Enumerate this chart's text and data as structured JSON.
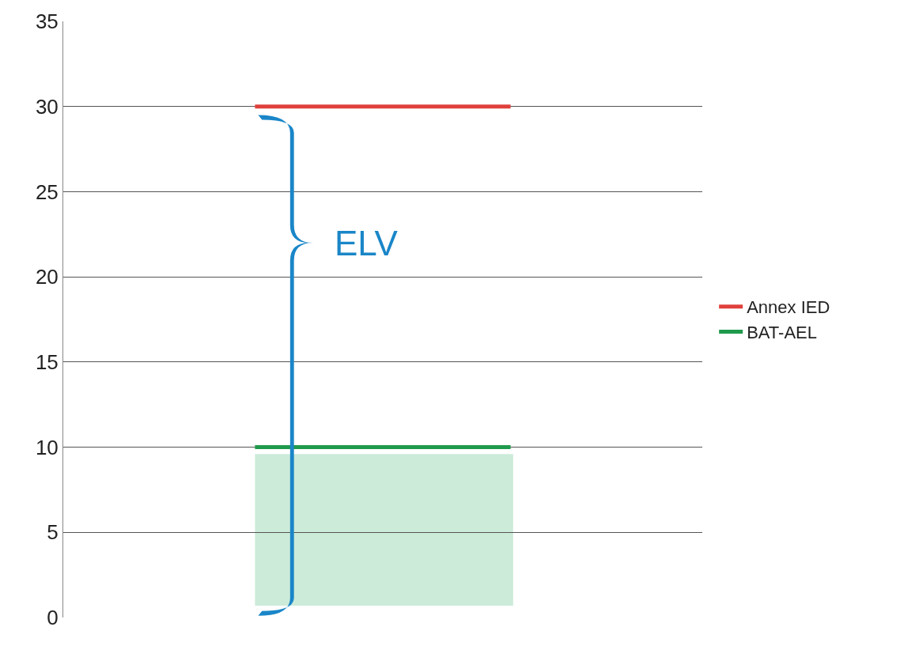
{
  "chart_data": {
    "type": "line",
    "categories": [
      null,
      null,
      null,
      null,
      null
    ],
    "series": [
      {
        "name": "Annex IED",
        "color": "#e0403c",
        "values": [
          null,
          30,
          30,
          30,
          null
        ]
      },
      {
        "name": "BAT-AEL",
        "color": "#1f9a4c",
        "values": [
          null,
          10,
          10,
          10,
          null
        ]
      }
    ],
    "ylim": [
      0,
      35
    ],
    "yticks": [
      0,
      5,
      10,
      15,
      20,
      25,
      30,
      35
    ],
    "bands": [
      {
        "axis": "y",
        "from": 0.7,
        "to": 9.6,
        "color": "#bfe6cf"
      }
    ],
    "annotations": [
      "ELV"
    ],
    "grid": "y",
    "legend": "right",
    "tick_labels": "y",
    "marker": "none",
    "line_style": "solid"
  }
}
